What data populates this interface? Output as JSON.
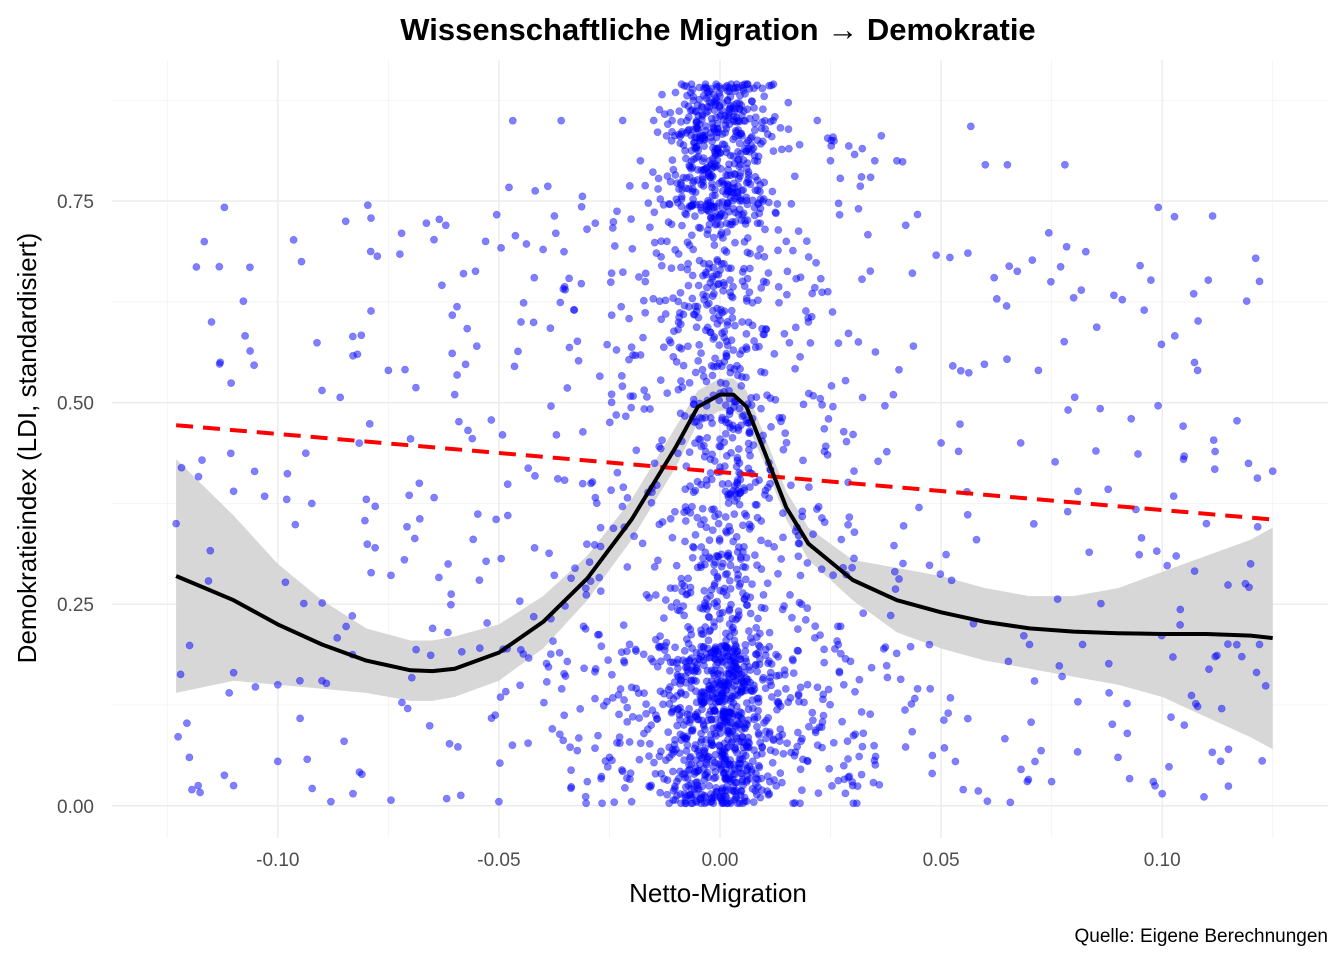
{
  "chart_data": {
    "type": "scatter",
    "title": "Wissenschaftliche Migration → Demokratie",
    "xlabel": "Netto-Migration",
    "ylabel": "Demokratieindex (LDI, standardisiert)",
    "caption": "Quelle: Eigene Berechnungen",
    "xlim": [
      -0.1375,
      0.1375
    ],
    "ylim": [
      -0.04,
      0.925
    ],
    "x_ticks": [
      -0.1,
      -0.05,
      0.0,
      0.05,
      0.1
    ],
    "x_tick_labels": [
      "-0.10",
      "-0.05",
      "0.00",
      "0.05",
      "0.10"
    ],
    "y_ticks": [
      0.0,
      0.25,
      0.5,
      0.75
    ],
    "y_tick_labels": [
      "0.00",
      "0.25",
      "0.50",
      "0.75"
    ],
    "grid": true,
    "colors": {
      "points": "#0000ff",
      "linear_fit": "#ff0000",
      "loess": "#000000",
      "confidence_band": "#d3d3d3"
    },
    "series": [
      {
        "kind": "points",
        "n_points_approx": 2500,
        "opacity": 0.5,
        "sample_points": [
          [
            -0.123,
            0.35
          ],
          [
            -0.12,
            0.06
          ],
          [
            -0.118,
            0.025
          ],
          [
            -0.115,
            0.6
          ],
          [
            -0.113,
            0.55
          ],
          [
            -0.111,
            0.14
          ],
          [
            -0.11,
            0.165
          ],
          [
            -0.11,
            0.39
          ],
          [
            -0.11,
            0.025
          ],
          [
            -0.1,
            0.15
          ],
          [
            -0.1,
            0.055
          ],
          [
            -0.098,
            0.38
          ],
          [
            -0.095,
            0.155
          ],
          [
            -0.09,
            0.515
          ],
          [
            -0.09,
            0.155
          ],
          [
            -0.088,
            0.005
          ],
          [
            -0.085,
            0.08
          ],
          [
            -0.083,
            0.015
          ],
          [
            -0.082,
            0.56
          ],
          [
            -0.08,
            0.38
          ],
          [
            -0.078,
            0.32
          ],
          [
            -0.075,
            0.54
          ],
          [
            -0.072,
            0.71
          ],
          [
            -0.07,
            0.455
          ],
          [
            -0.068,
            0.4
          ],
          [
            -0.065,
            0.22
          ],
          [
            -0.062,
            0.72
          ],
          [
            -0.06,
            0.51
          ],
          [
            -0.058,
            0.66
          ],
          [
            -0.055,
            0.57
          ],
          [
            -0.053,
            0.7
          ],
          [
            -0.05,
            0.005
          ],
          [
            -0.048,
            0.36
          ],
          [
            -0.045,
            0.6
          ],
          [
            -0.042,
            0.655
          ],
          [
            -0.04,
            0.69
          ],
          [
            -0.037,
            0.46
          ],
          [
            -0.035,
            0.64
          ],
          [
            -0.03,
            0.03
          ],
          [
            -0.025,
            0.06
          ],
          [
            -0.022,
            0.85
          ],
          [
            -0.02,
            0.005
          ],
          [
            -0.018,
            0.8
          ],
          [
            -0.015,
            0.85
          ],
          [
            -0.012,
            0.7
          ],
          [
            -0.008,
            0.87
          ],
          [
            -0.005,
            0.84
          ],
          [
            -0.003,
            0.89
          ],
          [
            0.0,
            0.88
          ],
          [
            0.0,
            0.42
          ],
          [
            0.003,
            0.89
          ],
          [
            0.005,
            0.6
          ],
          [
            0.008,
            0.78
          ],
          [
            0.01,
            0.88
          ],
          [
            0.012,
            0.85
          ],
          [
            0.015,
            0.7
          ],
          [
            0.018,
            0.82
          ],
          [
            0.02,
            0.6
          ],
          [
            0.022,
            0.85
          ],
          [
            0.025,
            0.8
          ],
          [
            0.028,
            0.15
          ],
          [
            0.03,
            0.025
          ],
          [
            0.032,
            0.78
          ],
          [
            0.035,
            0.8
          ],
          [
            0.04,
            0.8
          ],
          [
            0.042,
            0.72
          ],
          [
            0.045,
            0.37
          ],
          [
            0.048,
            0.04
          ],
          [
            0.05,
            0.45
          ],
          [
            0.052,
            0.68
          ],
          [
            0.055,
            0.02
          ],
          [
            0.058,
            0.33
          ],
          [
            0.06,
            0.795
          ],
          [
            0.062,
            0.655
          ],
          [
            0.065,
            0.795
          ],
          [
            0.068,
            0.45
          ],
          [
            0.07,
            0.2
          ],
          [
            0.072,
            0.54
          ],
          [
            0.075,
            0.03
          ],
          [
            0.078,
            0.795
          ],
          [
            0.08,
            0.63
          ],
          [
            0.082,
            0.2
          ],
          [
            0.085,
            0.44
          ],
          [
            0.088,
            0.14
          ],
          [
            0.09,
            0.06
          ],
          [
            0.093,
            0.48
          ],
          [
            0.095,
            0.67
          ],
          [
            0.098,
            0.03
          ],
          [
            0.1,
            0.015
          ],
          [
            0.102,
            0.11
          ],
          [
            0.105,
            0.1
          ],
          [
            0.108,
            0.54
          ],
          [
            0.11,
            0.35
          ],
          [
            0.112,
            0.185
          ],
          [
            0.115,
            0.07
          ],
          [
            0.118,
            0.185
          ],
          [
            0.12,
            0.3
          ],
          [
            0.122,
            0.2
          ],
          [
            0.125,
            0.415
          ]
        ]
      },
      {
        "kind": "linear-fit",
        "line_style": "dashed",
        "x": [
          -0.123,
          0.125
        ],
        "y": [
          0.472,
          0.355
        ]
      },
      {
        "kind": "loess",
        "line_style": "solid",
        "x": [
          -0.123,
          -0.11,
          -0.1,
          -0.09,
          -0.08,
          -0.07,
          -0.065,
          -0.06,
          -0.05,
          -0.04,
          -0.03,
          -0.02,
          -0.01,
          -0.005,
          0.0,
          0.003,
          0.006,
          0.01,
          0.015,
          0.02,
          0.03,
          0.04,
          0.05,
          0.06,
          0.07,
          0.08,
          0.09,
          0.1,
          0.11,
          0.12,
          0.125
        ],
        "y": [
          0.285,
          0.255,
          0.225,
          0.2,
          0.18,
          0.168,
          0.167,
          0.17,
          0.19,
          0.228,
          0.282,
          0.355,
          0.445,
          0.495,
          0.51,
          0.51,
          0.495,
          0.44,
          0.37,
          0.325,
          0.28,
          0.255,
          0.24,
          0.228,
          0.22,
          0.216,
          0.214,
          0.213,
          0.213,
          0.211,
          0.208
        ],
        "ci_lower": [
          0.14,
          0.155,
          0.15,
          0.145,
          0.14,
          0.13,
          0.13,
          0.135,
          0.155,
          0.195,
          0.255,
          0.33,
          0.42,
          0.475,
          0.49,
          0.49,
          0.475,
          0.425,
          0.355,
          0.305,
          0.255,
          0.215,
          0.195,
          0.18,
          0.17,
          0.16,
          0.15,
          0.135,
          0.11,
          0.085,
          0.07
        ],
        "ci_upper": [
          0.43,
          0.36,
          0.3,
          0.255,
          0.22,
          0.205,
          0.205,
          0.21,
          0.225,
          0.26,
          0.31,
          0.38,
          0.47,
          0.515,
          0.53,
          0.53,
          0.515,
          0.46,
          0.39,
          0.345,
          0.305,
          0.295,
          0.285,
          0.27,
          0.26,
          0.26,
          0.27,
          0.29,
          0.31,
          0.33,
          0.345
        ]
      }
    ]
  }
}
